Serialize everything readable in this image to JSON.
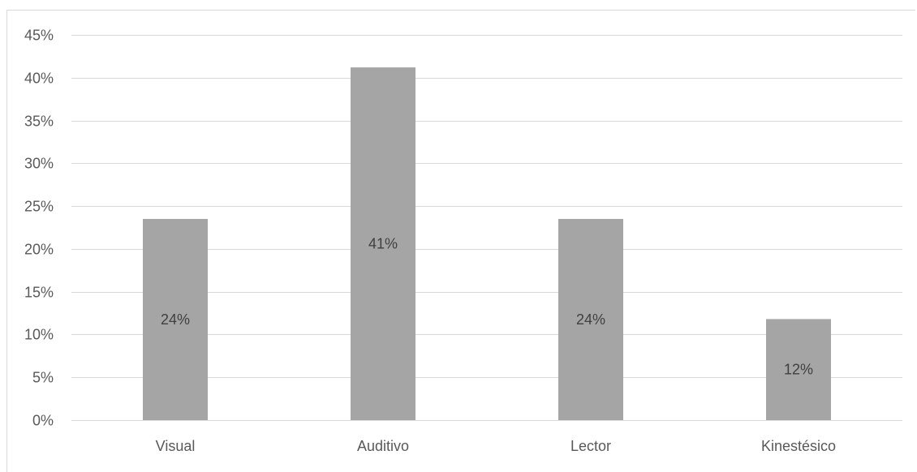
{
  "chart_data": {
    "type": "bar",
    "categories": [
      "Visual",
      "Auditivo",
      "Lector",
      "Kinestésico"
    ],
    "values": [
      23.5,
      41.2,
      23.5,
      11.8
    ],
    "data_labels": [
      "24%",
      "41%",
      "24%",
      "12%"
    ],
    "y_ticks": [
      "0%",
      "5%",
      "10%",
      "15%",
      "20%",
      "25%",
      "30%",
      "35%",
      "40%",
      "45%"
    ],
    "ylim": [
      0,
      45
    ],
    "title": "",
    "xlabel": "",
    "ylabel": "",
    "grid": true,
    "legend": "none",
    "bar_color": "#a5a5a5",
    "grid_color": "#d9d9d9"
  }
}
